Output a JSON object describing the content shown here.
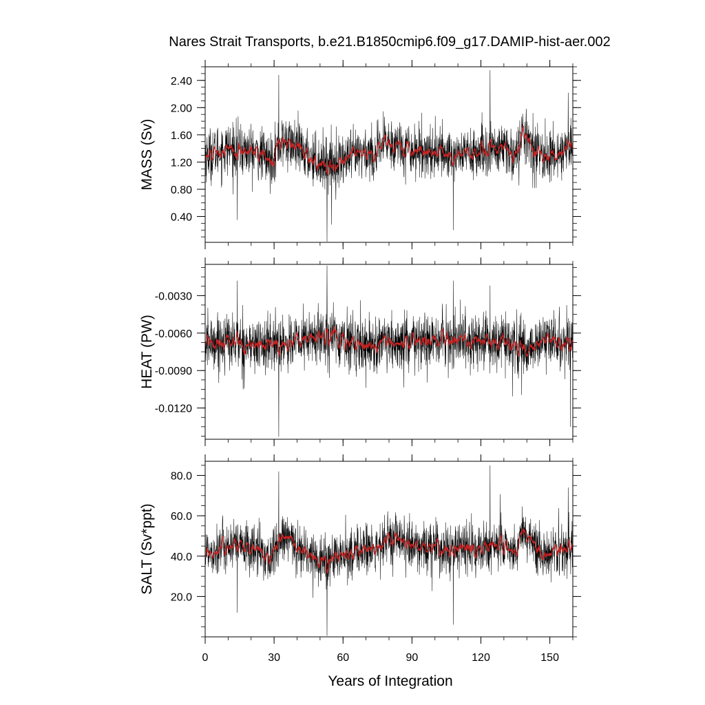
{
  "title": "Nares Strait Transports, b.e21.B1850cmip6.f09_g17.DAMIP-hist-aer.002",
  "colors": {
    "raw_series": "#000000",
    "smoothed_series": "#cc2222",
    "frame": "#000000"
  },
  "chart_data": [
    {
      "type": "line",
      "ylabel": "MASS (Sv)",
      "xlim": [
        0,
        160
      ],
      "ylim": [
        0.02,
        2.6
      ],
      "yticks": [
        0.4,
        0.8,
        1.2,
        1.6,
        2.0,
        2.4
      ],
      "ytick_labels": [
        "0.40",
        "0.80",
        "1.20",
        "1.60",
        "2.00",
        "2.40"
      ],
      "baseline": 1.32,
      "noise": 0.19,
      "grid": false,
      "segments": [
        {
          "x": [
            0,
            10,
            20,
            25,
            28,
            32,
            35,
            40,
            45,
            50,
            55,
            60,
            65,
            70,
            75,
            78,
            85,
            90,
            100,
            108,
            115,
            120,
            125,
            130,
            135,
            138,
            140,
            145,
            150,
            155,
            160
          ],
          "y": [
            1.3,
            1.4,
            1.35,
            1.3,
            1.2,
            1.45,
            1.5,
            1.4,
            1.28,
            1.2,
            1.18,
            1.22,
            1.28,
            1.35,
            1.3,
            1.5,
            1.45,
            1.38,
            1.35,
            1.3,
            1.35,
            1.32,
            1.4,
            1.38,
            1.3,
            1.6,
            1.55,
            1.3,
            1.28,
            1.35,
            1.4
          ]
        }
      ],
      "spikes": [
        {
          "x": 32,
          "y": 2.48
        },
        {
          "x": 53,
          "y": 0.03
        },
        {
          "x": 124,
          "y": 2.55
        },
        {
          "x": 108,
          "y": 0.2
        },
        {
          "x": 14,
          "y": 0.35
        },
        {
          "x": 55,
          "y": 0.28
        },
        {
          "x": 158,
          "y": 2.22
        }
      ]
    },
    {
      "type": "line",
      "ylabel": "HEAT (PW)",
      "xlim": [
        0,
        160
      ],
      "ylim": [
        -0.0145,
        -0.0005
      ],
      "yticks": [
        -0.012,
        -0.009,
        -0.006,
        -0.003
      ],
      "ytick_labels": [
        "-0.0120",
        "-0.0090",
        "-0.0060",
        "-0.0030"
      ],
      "baseline": -0.0068,
      "noise": 0.0011,
      "grid": false,
      "segments": [
        {
          "x": [
            0,
            10,
            20,
            30,
            40,
            50,
            55,
            60,
            70,
            80,
            90,
            100,
            110,
            120,
            130,
            137,
            140,
            150,
            160
          ],
          "y": [
            -0.0068,
            -0.0066,
            -0.007,
            -0.0069,
            -0.0067,
            -0.0063,
            -0.0062,
            -0.0066,
            -0.0069,
            -0.007,
            -0.0068,
            -0.0067,
            -0.0065,
            -0.0068,
            -0.0066,
            -0.0074,
            -0.0072,
            -0.0066,
            -0.0068
          ]
        }
      ],
      "spikes": [
        {
          "x": 32,
          "y": -0.0143
        },
        {
          "x": 53,
          "y": -0.0006
        },
        {
          "x": 108,
          "y": -0.0018
        },
        {
          "x": 124,
          "y": -0.0022
        },
        {
          "x": 159,
          "y": -0.0135
        },
        {
          "x": 14,
          "y": -0.0018
        }
      ]
    },
    {
      "type": "line",
      "ylabel": "SALT (Sv*ppt)",
      "xlim": [
        0,
        160
      ],
      "ylim": [
        0,
        87
      ],
      "yticks": [
        20.0,
        40.0,
        60.0,
        80.0
      ],
      "ytick_labels": [
        "20.0",
        "40.0",
        "60.0",
        "80.0"
      ],
      "baseline": 43,
      "noise": 6.2,
      "grid": false,
      "segments": [
        {
          "x": [
            0,
            10,
            20,
            25,
            28,
            32,
            35,
            40,
            45,
            50,
            55,
            60,
            65,
            70,
            75,
            78,
            85,
            90,
            100,
            108,
            115,
            120,
            125,
            130,
            135,
            138,
            140,
            145,
            150,
            155,
            160
          ],
          "y": [
            42,
            45,
            44,
            42,
            38,
            46,
            49,
            45,
            41,
            38,
            38,
            40,
            42,
            44,
            42,
            48,
            47,
            45,
            44,
            42,
            44,
            43,
            46,
            45,
            42,
            52,
            50,
            43,
            42,
            44,
            45
          ]
        }
      ],
      "spikes": [
        {
          "x": 32,
          "y": 82
        },
        {
          "x": 53,
          "y": 0.5
        },
        {
          "x": 124,
          "y": 85
        },
        {
          "x": 108,
          "y": 6
        },
        {
          "x": 14,
          "y": 12
        },
        {
          "x": 158,
          "y": 74
        }
      ]
    }
  ],
  "x_axis": {
    "label": "Years of Integration",
    "ticks": [
      0,
      30,
      60,
      90,
      120,
      150
    ],
    "tick_labels": [
      "0",
      "30",
      "60",
      "90",
      "120",
      "150"
    ],
    "minor_step": 10
  }
}
